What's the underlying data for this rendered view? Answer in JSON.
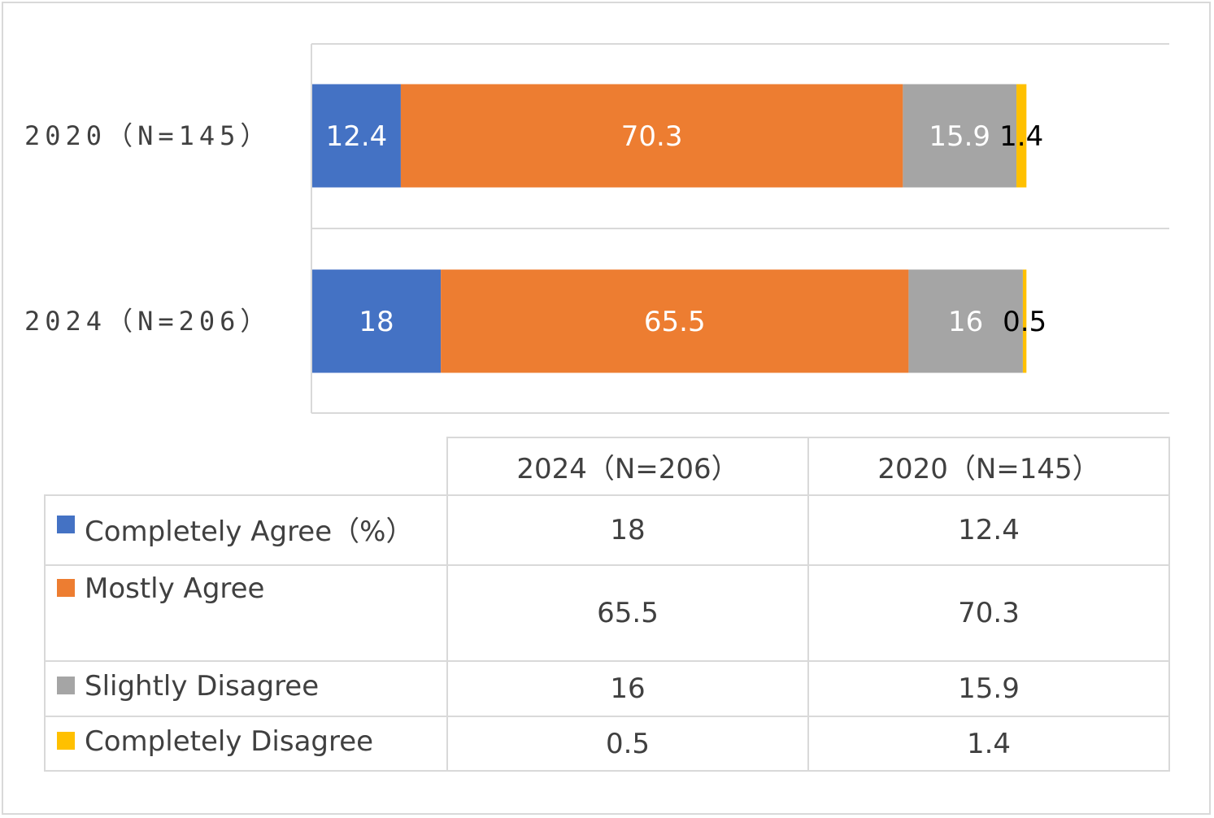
{
  "chart_data": {
    "type": "bar",
    "orientation": "horizontal",
    "stacked": true,
    "categories": [
      "2020（N=145）",
      "2024（N=206）"
    ],
    "series": [
      {
        "name": "Completely Agree（%）",
        "color": "#4472c4",
        "values": [
          12.4,
          18
        ]
      },
      {
        "name": "Mostly Agree",
        "color": "#ed7d31",
        "values": [
          70.3,
          65.5
        ]
      },
      {
        "name": "Slightly Disagree",
        "color": "#a5a5a5",
        "values": [
          15.9,
          16
        ]
      },
      {
        "name": "Completely Disagree",
        "color": "#ffc000",
        "values": [
          1.4,
          0.5
        ]
      }
    ],
    "xlim": [
      0,
      120
    ],
    "grid": false,
    "legend": "data-table"
  },
  "table": {
    "headers": [
      "2024（N=206）",
      "2020（N=145）"
    ],
    "rows": [
      {
        "label": "Completely Agree（%）",
        "color": "#4472c4",
        "values": [
          "18",
          "12.4"
        ]
      },
      {
        "label": "Mostly Agree",
        "color": "#ed7d31",
        "values": [
          "65.5",
          "70.3"
        ]
      },
      {
        "label": "Slightly Disagree",
        "color": "#a5a5a5",
        "values": [
          "16",
          "15.9"
        ]
      },
      {
        "label": "Completely Disagree",
        "color": "#ffc000",
        "values": [
          "0.5",
          "1.4"
        ]
      }
    ]
  }
}
